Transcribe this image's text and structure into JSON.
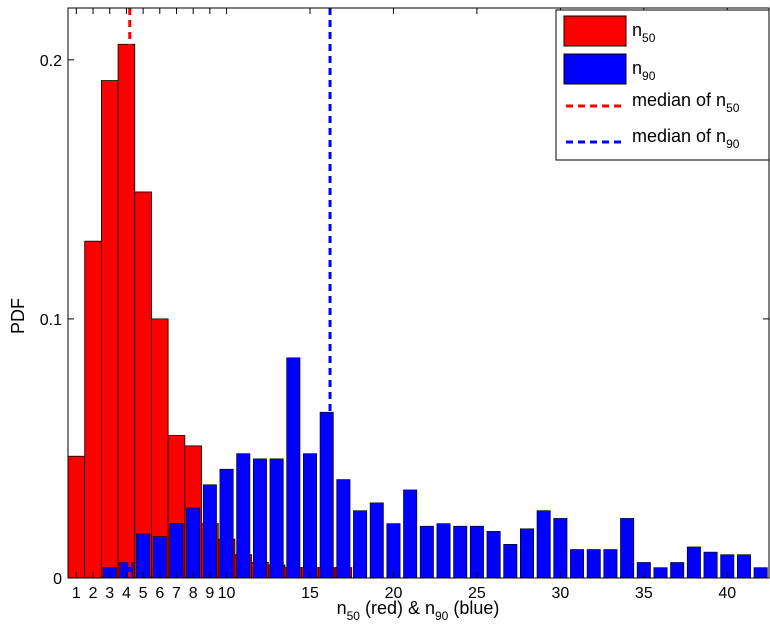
{
  "chart_data": {
    "type": "bar",
    "title": "",
    "xlabel": {
      "base1": "n",
      "sub1": "50",
      "mid": " (red)  & n",
      "sub2": "90",
      "tail": " (blue)"
    },
    "ylabel": "PDF",
    "xlim": [
      0.5,
      42.5
    ],
    "ylim": [
      0,
      0.22
    ],
    "x_ticks": [
      1,
      2,
      3,
      4,
      5,
      6,
      7,
      8,
      9,
      10,
      15,
      20,
      25,
      30,
      35,
      40
    ],
    "y_ticks": [
      {
        "value": 0,
        "label": "0"
      },
      {
        "value": 0.1,
        "label": "0.1"
      },
      {
        "value": 0.2,
        "label": "0.2"
      }
    ],
    "grid": false,
    "legend_position": "top-right",
    "series": [
      {
        "id": "n50",
        "name": {
          "base": "n",
          "sub": "50"
        },
        "color": "#ff0000",
        "x": [
          1,
          2,
          3,
          4,
          5,
          6,
          7,
          8,
          9,
          10,
          11,
          12,
          13,
          14,
          15,
          16,
          17
        ],
        "values": [
          0.047,
          0.13,
          0.192,
          0.206,
          0.149,
          0.1,
          0.055,
          0.051,
          0.021,
          0.015,
          0.009,
          0.006,
          0.005,
          0.004,
          0.004,
          0.004,
          0.004
        ]
      },
      {
        "id": "n90",
        "name": {
          "base": "n",
          "sub": "90"
        },
        "color": "#0000ff",
        "x": [
          3,
          4,
          5,
          6,
          7,
          8,
          9,
          10,
          11,
          12,
          13,
          14,
          15,
          16,
          17,
          18,
          19,
          20,
          21,
          22,
          23,
          24,
          25,
          26,
          27,
          28,
          29,
          30,
          31,
          32,
          33,
          34,
          35,
          36,
          37,
          38,
          39,
          40,
          41,
          42
        ],
        "values": [
          0.004,
          0.006,
          0.017,
          0.016,
          0.021,
          0.027,
          0.036,
          0.042,
          0.048,
          0.046,
          0.046,
          0.085,
          0.048,
          0.064,
          0.038,
          0.026,
          0.029,
          0.021,
          0.034,
          0.02,
          0.021,
          0.02,
          0.02,
          0.018,
          0.013,
          0.019,
          0.026,
          0.023,
          0.011,
          0.011,
          0.011,
          0.023,
          0.006,
          0.004,
          0.006,
          0.012,
          0.01,
          0.009,
          0.009,
          0.004
        ]
      }
    ],
    "medians": [
      {
        "id": "median-n50",
        "label": {
          "base": "median of n",
          "sub": "50"
        },
        "color": "#ff0000",
        "x": 4.2
      },
      {
        "id": "median-n90",
        "label": {
          "base": "median of n",
          "sub": "90"
        },
        "color": "#0000ff",
        "x": 16.2
      }
    ]
  }
}
